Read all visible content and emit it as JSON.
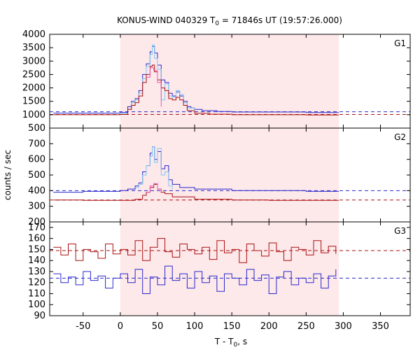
{
  "chart_data": {
    "type": "line",
    "title": {
      "prefix": "KONUS-WIND 040329 T",
      "sub": "0",
      "suffix": " = 71846s UT (19:57:26.000)"
    },
    "xlabel": {
      "prefix": "T - T",
      "sub": "0",
      "suffix": ", s"
    },
    "ylabel": "counts / sec",
    "xlim": [
      -95,
      390
    ],
    "xticks": [
      -50,
      0,
      50,
      100,
      150,
      200,
      250,
      300,
      350
    ],
    "shaded_interval": [
      0,
      294
    ],
    "shade_color": "#fde8ea",
    "panels": [
      {
        "label": "G1",
        "ylim": [
          500,
          4000
        ],
        "yticks": [
          500,
          1000,
          1500,
          2000,
          2500,
          3000,
          3500,
          4000
        ],
        "baselines": [
          {
            "name": "blue-background",
            "value": 1110,
            "color": "#2a2acc"
          },
          {
            "name": "red-background",
            "value": 1010,
            "color": "#aa1111"
          }
        ],
        "series": [
          {
            "color": "#2a2acc",
            "x": [
              -90,
              0,
              10,
              15,
              20,
              25,
              30,
              35,
              40,
              43,
              46,
              50,
              55,
              60,
              65,
              70,
              75,
              80,
              85,
              90,
              95,
              100,
              110,
              120,
              130,
              150,
              200,
              250,
              294
            ],
            "y": [
              1060,
              1080,
              1300,
              1500,
              1600,
              1900,
              2500,
              2900,
              3350,
              3550,
              3300,
              2850,
              2300,
              2200,
              1800,
              1700,
              1850,
              1700,
              1500,
              1300,
              1250,
              1200,
              1150,
              1150,
              1120,
              1100,
              1100,
              1080,
              1080
            ]
          },
          {
            "color": "#7fc8f0",
            "x": [
              0,
              10,
              15,
              20,
              25,
              30,
              35,
              40,
              43,
              46,
              50,
              55,
              60,
              65,
              70,
              75,
              80,
              85,
              90,
              100
            ],
            "y": [
              1050,
              1200,
              1450,
              1550,
              1800,
              2350,
              2800,
              3250,
              3600,
              3100,
              2700,
              1550,
              2150,
              1700,
              1650,
              1900,
              1750,
              1450,
              1250,
              1150
            ]
          },
          {
            "color": "#aa1111",
            "x": [
              -90,
              0,
              10,
              15,
              20,
              25,
              30,
              35,
              40,
              43,
              46,
              50,
              55,
              60,
              65,
              70,
              75,
              80,
              85,
              90,
              100,
              120,
              150,
              200,
              250,
              294
            ],
            "y": [
              1000,
              1010,
              1200,
              1350,
              1450,
              1700,
              2200,
              2500,
              2800,
              2850,
              2600,
              2300,
              2000,
              1900,
              1600,
              1550,
              1650,
              1550,
              1350,
              1150,
              1050,
              1020,
              1000,
              1000,
              990,
              990
            ]
          },
          {
            "color": "#e65ab4",
            "x": [
              35,
              40,
              45,
              50,
              55
            ],
            "y": [
              2400,
              2750,
              2650,
              2200,
              1300
            ]
          }
        ]
      },
      {
        "label": "G2",
        "ylim": [
          200,
          800
        ],
        "yticks": [
          200,
          300,
          400,
          500,
          600,
          700
        ],
        "baselines": [
          {
            "name": "blue-background",
            "value": 400,
            "color": "#2a2acc"
          },
          {
            "name": "red-background",
            "value": 340,
            "color": "#aa1111"
          }
        ],
        "series": [
          {
            "color": "#2a2acc",
            "x": [
              -90,
              -50,
              0,
              10,
              20,
              25,
              30,
              35,
              40,
              43,
              46,
              50,
              55,
              60,
              65,
              70,
              80,
              100,
              150,
              200,
              250,
              294
            ],
            "y": [
              390,
              395,
              400,
              410,
              430,
              450,
              520,
              560,
              640,
              680,
              600,
              650,
              540,
              560,
              470,
              440,
              420,
              410,
              400,
              400,
              395,
              395
            ]
          },
          {
            "color": "#7fc8f0",
            "x": [
              20,
              25,
              30,
              35,
              40,
              43,
              46,
              50,
              55,
              60,
              65,
              70
            ],
            "y": [
              420,
              440,
              500,
              560,
              620,
              680,
              580,
              670,
              500,
              520,
              430,
              410
            ]
          },
          {
            "color": "#aa1111",
            "x": [
              -90,
              -50,
              0,
              20,
              30,
              35,
              40,
              45,
              50,
              55,
              60,
              70,
              100,
              150,
              200,
              250,
              294
            ],
            "y": [
              340,
              338,
              338,
              345,
              370,
              390,
              420,
              440,
              410,
              390,
              380,
              360,
              345,
              340,
              338,
              338,
              338
            ]
          },
          {
            "color": "#e65ab4",
            "x": [
              35,
              40,
              45,
              50,
              55
            ],
            "y": [
              390,
              430,
              445,
              410,
              385
            ]
          }
        ]
      },
      {
        "label": "G3",
        "ylim": [
          90,
          175
        ],
        "yticks": [
          90,
          100,
          110,
          120,
          130,
          140,
          150,
          160,
          170
        ],
        "baselines": [
          {
            "name": "red-background",
            "value": 149,
            "color": "#aa1111"
          },
          {
            "name": "blue-background",
            "value": 124,
            "color": "#2a2acc"
          }
        ],
        "series": [
          {
            "color": "#aa1111",
            "x": [
              -90,
              -80,
              -70,
              -60,
              -50,
              -40,
              -30,
              -20,
              -10,
              0,
              10,
              20,
              30,
              40,
              50,
              60,
              70,
              80,
              90,
              100,
              110,
              120,
              130,
              140,
              150,
              160,
              170,
              180,
              190,
              200,
              210,
              220,
              230,
              240,
              250,
              260,
              270,
              280,
              290
            ],
            "y": [
              152,
              145,
              155,
              140,
              150,
              148,
              142,
              155,
              146,
              150,
              145,
              158,
              140,
              152,
              160,
              148,
              143,
              155,
              150,
              146,
              152,
              141,
              158,
              147,
              150,
              138,
              155,
              149,
              144,
              156,
              148,
              140,
              152,
              150,
              145,
              158,
              147,
              153,
              146
            ]
          },
          {
            "color": "#2a2acc",
            "x": [
              -90,
              -80,
              -70,
              -60,
              -50,
              -40,
              -30,
              -20,
              -10,
              0,
              10,
              20,
              30,
              40,
              50,
              60,
              70,
              80,
              90,
              100,
              110,
              120,
              130,
              140,
              150,
              160,
              170,
              180,
              190,
              200,
              210,
              220,
              230,
              240,
              250,
              260,
              270,
              280,
              290
            ],
            "y": [
              128,
              120,
              125,
              118,
              130,
              122,
              126,
              115,
              124,
              128,
              120,
              132,
              110,
              125,
              118,
              135,
              122,
              128,
              115,
              130,
              120,
              126,
              112,
              128,
              124,
              118,
              132,
              122,
              127,
              110,
              125,
              130,
              118,
              124,
              120,
              128,
              115,
              126,
              132
            ]
          }
        ]
      }
    ]
  }
}
